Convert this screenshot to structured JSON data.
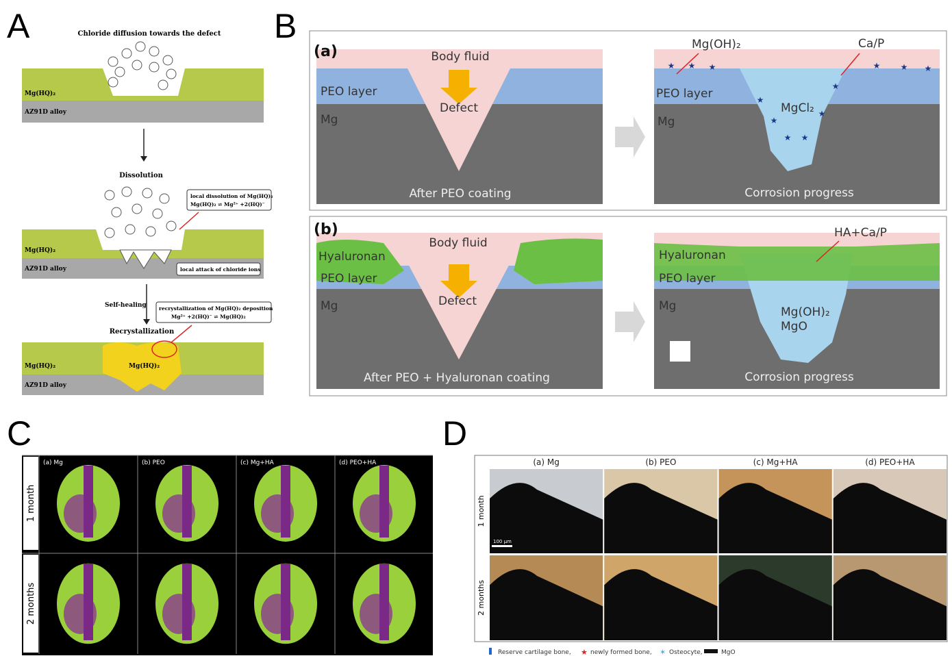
{
  "panel_a": {
    "label": "A",
    "title": "Chloride diffusion towards the defect",
    "layer_1": "Mg(HQ)₂",
    "alloy_1": "AZ91D alloy",
    "step_1": "Dissolution",
    "box_1_title": "local dissolution of Mg(HQ)₂",
    "box_1_eq": "Mg(HQ)₂ ⇌ Mg²⁺ +2(HQ)⁻",
    "layer_2": "Mg(HQ)₂",
    "alloy_2": "AZ91D alloy",
    "box_2": "local attack of chloride ions",
    "side_step": "Self-healing",
    "box_3_title": "recrystallization of Mg(HQ)₂ deposition",
    "box_3_eq": "Mg²⁺ +2(HQ)⁻ ⇌ Mg(HQ)₂",
    "step_2": "Recrystallization",
    "layer_3": "Mg(HQ)₂",
    "deposit": "Mg(HQ)₂",
    "alloy_3": "AZ91D alloy"
  },
  "panel_b": {
    "label": "B",
    "a": {
      "tag": "(a)",
      "body_fluid": "Body fluid",
      "peo": "PEO layer",
      "defect": "Defect",
      "mg": "Mg",
      "caption_left": "After PEO coating",
      "product_1": "Mg(OH)₂",
      "product_2": "Ca/P",
      "peo_right": "PEO layer",
      "mgcl": "MgCl₂",
      "mg_right": "Mg",
      "caption_right": "Corrosion progress"
    },
    "b": {
      "tag": "(b)",
      "body_fluid": "Body fluid",
      "hyaluronan": "Hyaluronan",
      "peo": "PEO layer",
      "defect": "Defect",
      "mg": "Mg",
      "caption_left": "After PEO + Hyaluronan coating",
      "product": "HA+Ca/P",
      "hyaluronan_right": "Hyaluronan",
      "peo_right": "PEO layer",
      "mg_right": "Mg",
      "product_2": "Mg(OH)₂",
      "product_3": "MgO",
      "caption_right": "Corrosion progress"
    }
  },
  "panel_c": {
    "label": "C",
    "columns": [
      "(a)  Mg",
      "(b)  PEO",
      "(c)  Mg+HA",
      "(d)  PEO+HA"
    ],
    "rows": [
      "1 month",
      "2 months"
    ]
  },
  "panel_d": {
    "label": "D",
    "columns": [
      "(a)  Mg",
      "(b)  PEO",
      "(c)  Mg+HA",
      "(d)  PEO+HA"
    ],
    "rows": [
      "1 month",
      "2 months"
    ],
    "scale_bar": "100 μm",
    "legend": [
      "Reserve cartilage bone,",
      "newly formed bone,",
      "Osteocyte,",
      "MgO"
    ]
  }
}
